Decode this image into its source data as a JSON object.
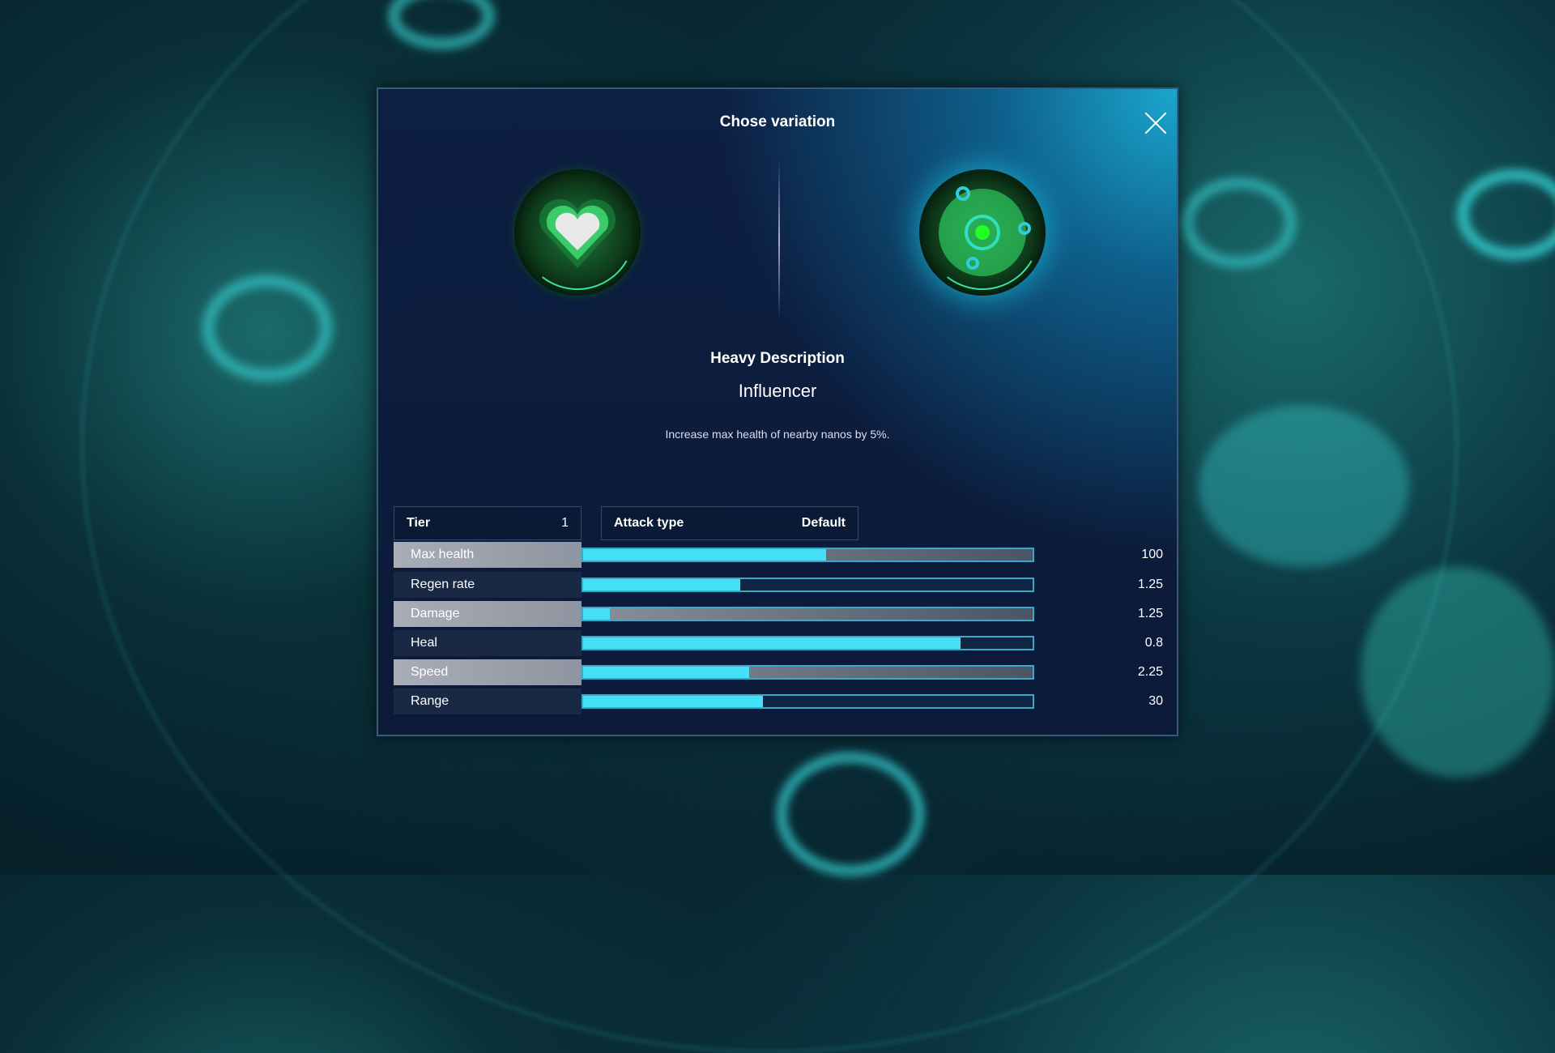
{
  "dialog": {
    "title": "Chose variation",
    "close_icon": "close-icon",
    "left_icon": "heart-icon",
    "right_icon": "orb-icon",
    "heading": "Heavy Description",
    "variation_name": "Influencer",
    "description": "Increase max health of nearby nanos by 5%.",
    "tier": {
      "label": "Tier",
      "value": "1"
    },
    "attack_type": {
      "label": "Attack type",
      "value": "Default"
    },
    "stats": [
      {
        "label": "Max health",
        "value": "100",
        "fill": 0.54
      },
      {
        "label": "Regen rate",
        "value": "1.25",
        "fill": 0.35
      },
      {
        "label": "Damage",
        "value": "1.25",
        "fill": 0.06
      },
      {
        "label": "Heal",
        "value": "0.8",
        "fill": 0.84
      },
      {
        "label": "Speed",
        "value": "2.25",
        "fill": 0.37
      },
      {
        "label": "Range",
        "value": "30",
        "fill": 0.4
      }
    ],
    "accent": "#45e0f8"
  }
}
